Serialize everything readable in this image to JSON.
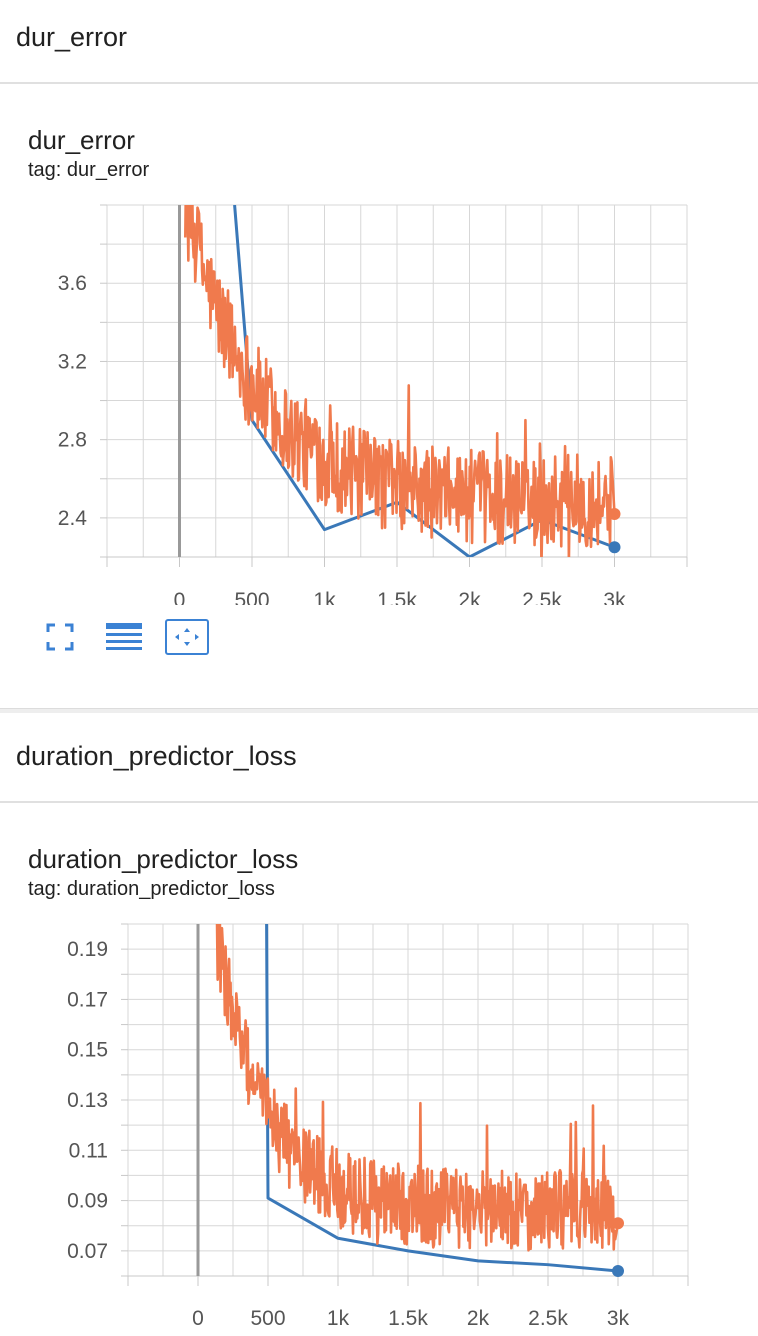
{
  "colors": {
    "smoothed": "#3a78b8",
    "raw": "#f07a4d",
    "grid": "#d7d7d7",
    "zero_line": "#999999",
    "toolbar_icon": "#3b82d4"
  },
  "sections": [
    {
      "title": "dur_error",
      "card_title": "dur_error",
      "card_tag": "tag: dur_error"
    },
    {
      "title": "duration_predictor_loss",
      "card_title": "duration_predictor_loss",
      "card_tag": "tag: duration_predictor_loss"
    }
  ],
  "toolbar": [
    {
      "icon": "fullscreen-icon",
      "selected": false
    },
    {
      "icon": "data-table-icon",
      "selected": false
    },
    {
      "icon": "fit-domain-icon",
      "selected": true
    }
  ],
  "chart_data": [
    {
      "type": "line",
      "title": "dur_error",
      "xlim": [
        -500,
        3500
      ],
      "ylim": [
        2.2,
        4.0
      ],
      "x_ticks": [
        0,
        500,
        1000,
        1500,
        2000,
        2500,
        3000
      ],
      "x_tick_labels": [
        "0",
        "500",
        "1k",
        "1.5k",
        "2k",
        "2.5k",
        "3k"
      ],
      "y_ticks": [
        2.4,
        2.8,
        3.2,
        3.6
      ],
      "y_tick_labels": [
        "2.4",
        "2.8",
        "3.2",
        "3.6"
      ],
      "series": [
        {
          "role": "smoothed",
          "x": [
            380,
            500,
            1000,
            1500,
            2000,
            2500,
            3000
          ],
          "y": [
            4.0,
            2.9,
            2.34,
            2.48,
            2.2,
            2.39,
            2.25
          ]
        },
        {
          "role": "raw",
          "x_start": 40,
          "x_end": 2980,
          "points": 560,
          "start": 4.0,
          "end": 2.48,
          "decay": 500,
          "noise": 0.3,
          "last": {
            "x": 3000,
            "y": 2.42
          }
        }
      ]
    },
    {
      "type": "line",
      "title": "duration_predictor_loss",
      "xlim": [
        -500,
        3500
      ],
      "ylim": [
        0.06,
        0.2
      ],
      "x_ticks": [
        0,
        500,
        1000,
        1500,
        2000,
        2500,
        3000
      ],
      "x_tick_labels": [
        "0",
        "500",
        "1k",
        "1.5k",
        "2k",
        "2.5k",
        "3k"
      ],
      "y_ticks": [
        0.07,
        0.09,
        0.11,
        0.13,
        0.15,
        0.17,
        0.19
      ],
      "y_tick_labels": [
        "0.07",
        "0.09",
        "0.11",
        "0.13",
        "0.15",
        "0.17",
        "0.19"
      ],
      "series": [
        {
          "role": "smoothed",
          "x": [
            490,
            500,
            1000,
            1500,
            2000,
            2500,
            3000
          ],
          "y": [
            0.2,
            0.091,
            0.075,
            0.07,
            0.066,
            0.0645,
            0.062
          ]
        },
        {
          "role": "raw",
          "x_start": 120,
          "x_end": 2980,
          "points": 560,
          "start": 0.2,
          "end": 0.086,
          "decay": 350,
          "noise": 0.02,
          "last": {
            "x": 3000,
            "y": 0.081
          }
        }
      ]
    }
  ]
}
